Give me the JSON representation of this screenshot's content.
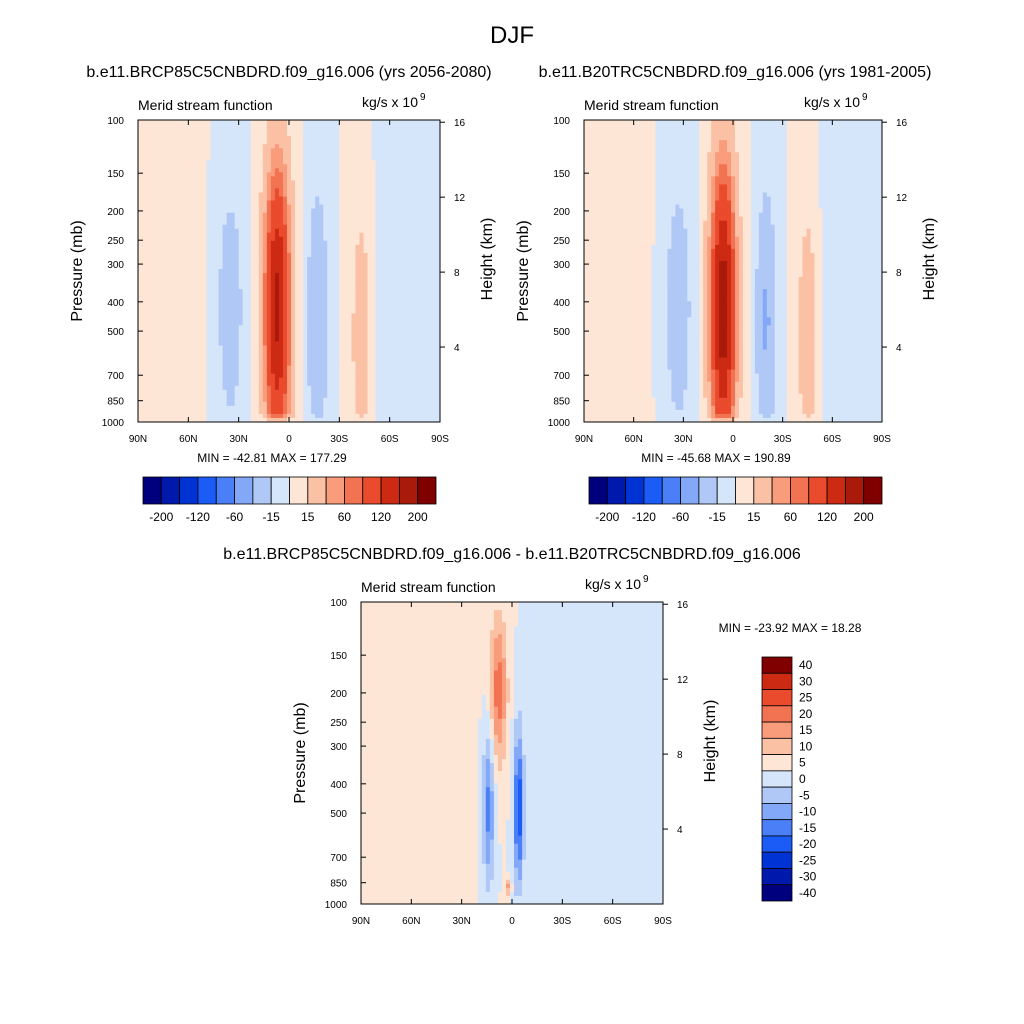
{
  "page_title": "DJF",
  "colors": {
    "seq_large": [
      "#00007f",
      "#0019ad",
      "#0033d4",
      "#1a5cf5",
      "#4a7ff7",
      "#82a8f7",
      "#b0c8f5",
      "#d6e6fa",
      "#fde6d6",
      "#fbc1a5",
      "#f99c7c",
      "#f27352",
      "#ea4b2d",
      "#cd2a14",
      "#aa1a0a",
      "#800000"
    ],
    "seq_diff": [
      "#00007f",
      "#0019ad",
      "#0033d4",
      "#1a5cf5",
      "#4a7ff7",
      "#82a8f7",
      "#b0c8f5",
      "#d6e6fa",
      "#fde6d6",
      "#fbc1a5",
      "#f99c7c",
      "#f27352",
      "#ea4b2d",
      "#cd2a14",
      "#800000"
    ]
  },
  "chart_data": [
    {
      "type": "heatmap",
      "id": "panel-rcp85",
      "title": "b.e11.BRCP85C5CNBDRD.f09_g16.006 (yrs 2056-2080)",
      "left_label": "Merid stream function",
      "right_label": "kg/s x 10",
      "right_label_exp": "9",
      "ylabel": "Pressure (mb)",
      "ylabel_right": "Height (km)",
      "x_ticks": [
        "90N",
        "60N",
        "30N",
        "0",
        "30S",
        "60S",
        "90S"
      ],
      "x_tick_values": [
        90,
        60,
        30,
        0,
        -30,
        -60,
        -90
      ],
      "xlim": [
        90,
        -90
      ],
      "y_ticks": [
        "100",
        "150",
        "200",
        "250",
        "300",
        "400",
        "500",
        "700",
        "850",
        "1000"
      ],
      "y_tick_values": [
        100,
        150,
        200,
        250,
        300,
        400,
        500,
        700,
        850,
        1000
      ],
      "ylim": [
        100,
        1000
      ],
      "y_scale": "log",
      "height_ticks": [
        "4",
        "8",
        "12",
        "16"
      ],
      "height_tick_values": [
        4,
        8,
        12,
        16
      ],
      "stats": "MIN = -42.81  MAX = 177.29",
      "min": -42.81,
      "max": 177.29,
      "colorbar_orientation": "horizontal",
      "colorbar_levels": [
        -200,
        -160,
        -120,
        -80,
        -60,
        -40,
        -15,
        0,
        15,
        40,
        60,
        80,
        120,
        160,
        200
      ],
      "colorbar_labels": [
        "-200",
        "-120",
        "-60",
        "-15",
        "15",
        "60",
        "120",
        "200"
      ],
      "features": [
        {
          "lat": 35,
          "p": 420,
          "w": 8,
          "pw": 0.95,
          "v": -28
        },
        {
          "lat": 7,
          "p": 420,
          "w": 7.5,
          "pw": 1.05,
          "v": 170
        },
        {
          "lat": -17,
          "p": 460,
          "w": 6,
          "pw": 0.95,
          "v": -40
        },
        {
          "lat": -43,
          "p": 520,
          "w": 6,
          "pw": 1.0,
          "v": 28
        },
        {
          "lat": -63,
          "p": 350,
          "w": 10,
          "pw": 1.6,
          "v": -7
        },
        {
          "lat": 62,
          "p": 350,
          "w": 10,
          "pw": 1.6,
          "v": 5
        }
      ]
    },
    {
      "type": "heatmap",
      "id": "panel-20tr",
      "title": "b.e11.B20TRC5CNBDRD.f09_g16.006 (yrs 1981-2005)",
      "left_label": "Merid stream function",
      "right_label": "kg/s x 10",
      "right_label_exp": "9",
      "ylabel": "Pressure (mb)",
      "ylabel_right": "Height (km)",
      "x_ticks": [
        "90N",
        "60N",
        "30N",
        "0",
        "30S",
        "60S",
        "90S"
      ],
      "x_tick_values": [
        90,
        60,
        30,
        0,
        -30,
        -60,
        -90
      ],
      "xlim": [
        90,
        -90
      ],
      "y_ticks": [
        "100",
        "150",
        "200",
        "250",
        "300",
        "400",
        "500",
        "700",
        "850",
        "1000"
      ],
      "y_tick_values": [
        100,
        150,
        200,
        250,
        300,
        400,
        500,
        700,
        850,
        1000
      ],
      "ylim": [
        100,
        1000
      ],
      "y_scale": "log",
      "height_ticks": [
        "4",
        "8",
        "12",
        "16"
      ],
      "height_tick_values": [
        4,
        8,
        12,
        16
      ],
      "stats": "MIN = -45.68  MAX = 190.89",
      "min": -45.68,
      "max": 190.89,
      "colorbar_orientation": "horizontal",
      "colorbar_levels": [
        -200,
        -160,
        -120,
        -80,
        -60,
        -40,
        -15,
        0,
        15,
        40,
        60,
        80,
        120,
        160,
        200
      ],
      "colorbar_labels": [
        "-200",
        "-120",
        "-60",
        "-15",
        "15",
        "60",
        "120",
        "200"
      ],
      "features": [
        {
          "lat": 33,
          "p": 420,
          "w": 8,
          "pw": 0.95,
          "v": -30
        },
        {
          "lat": 6,
          "p": 420,
          "w": 7.5,
          "pw": 1.05,
          "v": 185
        },
        {
          "lat": -20,
          "p": 460,
          "w": 6,
          "pw": 0.95,
          "v": -43
        },
        {
          "lat": -45,
          "p": 520,
          "w": 6,
          "pw": 1.0,
          "v": 30
        },
        {
          "lat": -63,
          "p": 350,
          "w": 10,
          "pw": 1.6,
          "v": -7
        },
        {
          "lat": 62,
          "p": 350,
          "w": 10,
          "pw": 1.6,
          "v": 5
        }
      ]
    },
    {
      "type": "heatmap",
      "id": "panel-diff",
      "title": "b.e11.BRCP85C5CNBDRD.f09_g16.006 - b.e11.B20TRC5CNBDRD.f09_g16.006",
      "left_label": "Merid stream function",
      "right_label": "kg/s x 10",
      "right_label_exp": "9",
      "ylabel": "Pressure (mb)",
      "ylabel_right": "Height (km)",
      "x_ticks": [
        "90N",
        "60N",
        "30N",
        "0",
        "30S",
        "60S",
        "90S"
      ],
      "x_tick_values": [
        90,
        60,
        30,
        0,
        -30,
        -60,
        -90
      ],
      "xlim": [
        90,
        -90
      ],
      "y_ticks": [
        "100",
        "150",
        "200",
        "250",
        "300",
        "400",
        "500",
        "700",
        "850",
        "1000"
      ],
      "y_tick_values": [
        100,
        150,
        200,
        250,
        300,
        400,
        500,
        700,
        850,
        1000
      ],
      "ylim": [
        100,
        1000
      ],
      "y_scale": "log",
      "height_ticks": [
        "4",
        "8",
        "12",
        "16"
      ],
      "height_tick_values": [
        4,
        8,
        12,
        16
      ],
      "stats": "MIN = -23.92  MAX =  18.28",
      "min": -23.92,
      "max": 18.28,
      "colorbar_orientation": "vertical",
      "colorbar_levels": [
        -40,
        -30,
        -25,
        -20,
        -15,
        -10,
        -5,
        0,
        5,
        10,
        15,
        20,
        25,
        30,
        40
      ],
      "colorbar_labels": [
        "40",
        "30",
        "25",
        "20",
        "15",
        "10",
        "5",
        "0",
        "-5",
        "-10",
        "-15",
        "-20",
        "-25",
        "-30",
        "-40"
      ],
      "features": [
        {
          "lat": 8,
          "p": 195,
          "w": 5,
          "pw": 0.55,
          "v": 18
        },
        {
          "lat": 14,
          "p": 480,
          "w": 3.5,
          "pw": 0.6,
          "v": -17
        },
        {
          "lat": -4,
          "p": 480,
          "w": 3,
          "pw": 0.6,
          "v": -24
        },
        {
          "lat": 2,
          "p": 880,
          "w": 1.5,
          "pw": 0.06,
          "v": 12
        },
        {
          "lat": 45,
          "p": 500,
          "w": 25,
          "pw": 1.6,
          "v": 1.5
        },
        {
          "lat": -45,
          "p": 500,
          "w": 25,
          "pw": 1.6,
          "v": -1.5
        }
      ]
    }
  ]
}
